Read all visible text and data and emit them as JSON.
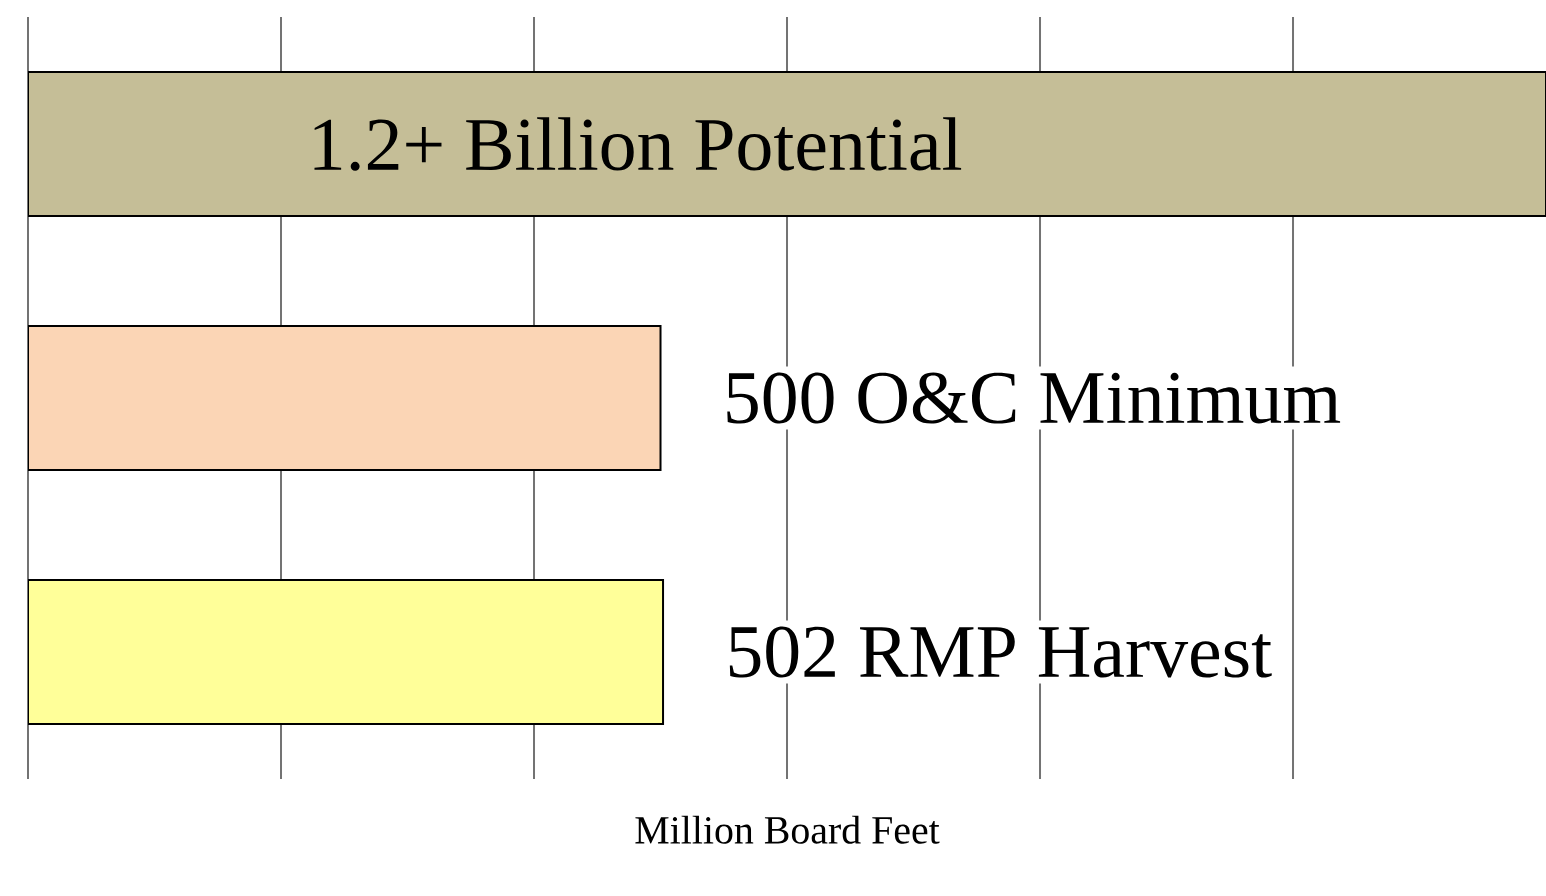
{
  "chart_data": {
    "type": "bar",
    "orientation": "horizontal",
    "xlabel": "Million Board Feet",
    "categories": [
      null,
      null,
      null
    ],
    "values": [
      1200,
      500,
      502
    ],
    "colors": [
      "#c5be97",
      "#fbd5b5",
      "#ffff99"
    ],
    "value_labels": [
      "1.2+ Billion Potential",
      "500 O&C Minimum",
      "502 RMP Harvest"
    ],
    "xlim": [
      0,
      1200
    ],
    "xticks": [
      {
        "value": 0,
        "label": null
      },
      {
        "value": 200,
        "label": null
      },
      {
        "value": 400,
        "label": null
      },
      {
        "value": 600,
        "label": null
      },
      {
        "value": 800,
        "label": null
      },
      {
        "value": 1000,
        "label": null
      }
    ],
    "grid": "x"
  }
}
